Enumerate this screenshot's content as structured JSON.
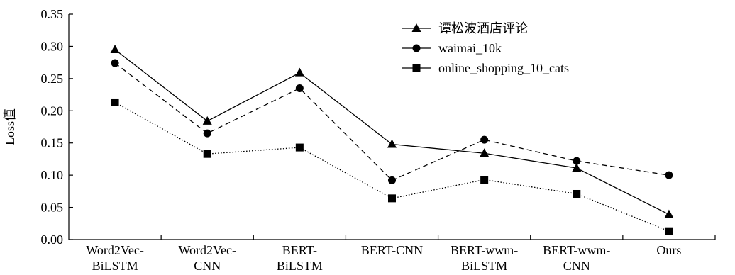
{
  "chart_data": {
    "type": "line",
    "ylabel": "Loss值",
    "xlabel": "",
    "ylim": [
      0,
      0.35
    ],
    "yticks": [
      "0.00",
      "0.05",
      "0.10",
      "0.15",
      "0.20",
      "0.25",
      "0.30",
      "0.35"
    ],
    "categories": [
      [
        "Word2Vec-",
        "BiLSTM"
      ],
      [
        "Word2Vec-",
        "CNN"
      ],
      [
        "BERT-",
        "BiLSTM"
      ],
      [
        "BERT-CNN"
      ],
      [
        "BERT-wwm-",
        "BiLSTM"
      ],
      [
        "BERT-wwm-",
        "CNN"
      ],
      [
        "Ours"
      ]
    ],
    "grid": false,
    "legend_position": "top-right",
    "series": [
      {
        "name": "谭松波酒店评论",
        "marker": "triangle",
        "line_style": "solid",
        "values": [
          0.295,
          0.184,
          0.259,
          0.148,
          0.134,
          0.111,
          0.039
        ]
      },
      {
        "name": "waimai_10k",
        "marker": "circle",
        "line_style": "dashed",
        "values": [
          0.274,
          0.165,
          0.235,
          0.092,
          0.155,
          0.122,
          0.1
        ]
      },
      {
        "name": "online_shopping_10_cats",
        "marker": "square",
        "line_style": "dotted",
        "values": [
          0.213,
          0.133,
          0.143,
          0.064,
          0.093,
          0.071,
          0.013
        ]
      }
    ],
    "colors": {
      "line": "#000000",
      "marker": "#000000"
    }
  }
}
